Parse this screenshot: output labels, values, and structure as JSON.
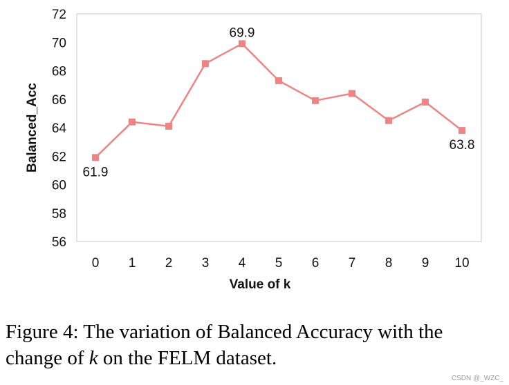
{
  "chart_data": {
    "type": "line",
    "x": [
      0,
      1,
      2,
      3,
      4,
      5,
      6,
      7,
      8,
      9,
      10
    ],
    "series": [
      {
        "values": [
          61.9,
          64.4,
          64.1,
          68.5,
          69.9,
          67.3,
          65.9,
          66.4,
          64.5,
          65.8,
          63.8
        ]
      }
    ],
    "xlabel": "Value of k",
    "ylabel": "Balanced_Acc",
    "ylim": [
      56,
      72
    ],
    "yticks": [
      56,
      58,
      60,
      62,
      64,
      66,
      68,
      70,
      72
    ],
    "data_labels": [
      {
        "x": 0,
        "text": "61.9",
        "position": "below"
      },
      {
        "x": 4,
        "text": "69.9",
        "position": "above"
      },
      {
        "x": 10,
        "text": "63.8",
        "position": "below"
      }
    ],
    "line_color": "#ec8583",
    "grid": false,
    "legend": "none"
  },
  "caption": {
    "line1": "Figure 4: The variation of Balanced Accuracy with the",
    "line2_pre": "change of ",
    "line2_var": "k",
    "line2_post": " on the FELM dataset."
  },
  "watermark": "CSDN @_WZC_"
}
